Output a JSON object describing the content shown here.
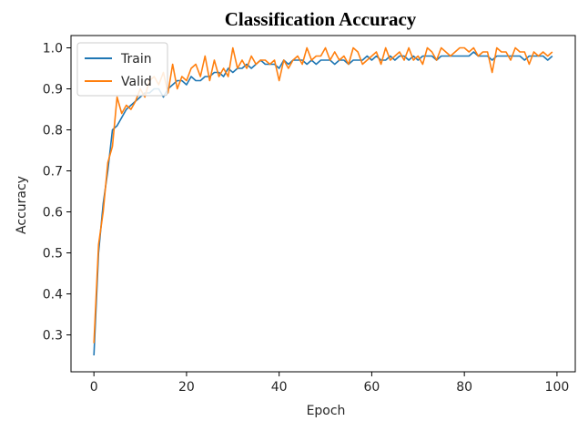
{
  "chart_data": {
    "type": "line",
    "title": "Classification Accuracy",
    "xlabel": "Epoch",
    "ylabel": "Accuracy",
    "xlim": [
      -4.95,
      103.95
    ],
    "ylim": [
      0.21,
      1.03
    ],
    "xticks": [
      0,
      20,
      40,
      60,
      80,
      100
    ],
    "yticks": [
      0.3,
      0.4,
      0.5,
      0.6,
      0.7,
      0.8,
      0.9,
      1.0
    ],
    "xtick_labels": [
      "0",
      "20",
      "40",
      "60",
      "80",
      "100"
    ],
    "ytick_labels": [
      "0.3",
      "0.4",
      "0.5",
      "0.6",
      "0.7",
      "0.8",
      "0.9",
      "1.0"
    ],
    "legend_position": "top-left",
    "grid": false,
    "x": [
      0,
      1,
      2,
      3,
      4,
      5,
      6,
      7,
      8,
      9,
      10,
      11,
      12,
      13,
      14,
      15,
      16,
      17,
      18,
      19,
      20,
      21,
      22,
      23,
      24,
      25,
      26,
      27,
      28,
      29,
      30,
      31,
      32,
      33,
      34,
      35,
      36,
      37,
      38,
      39,
      40,
      41,
      42,
      43,
      44,
      45,
      46,
      47,
      48,
      49,
      50,
      51,
      52,
      53,
      54,
      55,
      56,
      57,
      58,
      59,
      60,
      61,
      62,
      63,
      64,
      65,
      66,
      67,
      68,
      69,
      70,
      71,
      72,
      73,
      74,
      75,
      76,
      77,
      78,
      79,
      80,
      81,
      82,
      83,
      84,
      85,
      86,
      87,
      88,
      89,
      90,
      91,
      92,
      93,
      94,
      95,
      96,
      97,
      98,
      99
    ],
    "series": [
      {
        "name": "Train",
        "color": "#1f77b4",
        "values": [
          0.25,
          0.5,
          0.62,
          0.7,
          0.8,
          0.81,
          0.83,
          0.85,
          0.86,
          0.87,
          0.88,
          0.89,
          0.89,
          0.9,
          0.9,
          0.88,
          0.9,
          0.91,
          0.92,
          0.92,
          0.91,
          0.93,
          0.92,
          0.92,
          0.93,
          0.93,
          0.94,
          0.94,
          0.93,
          0.95,
          0.94,
          0.95,
          0.95,
          0.96,
          0.95,
          0.96,
          0.97,
          0.96,
          0.96,
          0.96,
          0.95,
          0.97,
          0.96,
          0.97,
          0.97,
          0.97,
          0.96,
          0.97,
          0.96,
          0.97,
          0.97,
          0.97,
          0.96,
          0.97,
          0.97,
          0.96,
          0.97,
          0.97,
          0.97,
          0.98,
          0.97,
          0.98,
          0.97,
          0.97,
          0.98,
          0.97,
          0.98,
          0.98,
          0.97,
          0.98,
          0.97,
          0.98,
          0.98,
          0.98,
          0.97,
          0.98,
          0.98,
          0.98,
          0.98,
          0.98,
          0.98,
          0.98,
          0.99,
          0.98,
          0.98,
          0.98,
          0.97,
          0.98,
          0.98,
          0.98,
          0.98,
          0.98,
          0.98,
          0.97,
          0.98,
          0.98,
          0.98,
          0.98,
          0.97,
          0.98
        ]
      },
      {
        "name": "Valid",
        "color": "#ff7f0e",
        "values": [
          0.28,
          0.52,
          0.6,
          0.72,
          0.76,
          0.88,
          0.84,
          0.86,
          0.85,
          0.87,
          0.9,
          0.88,
          0.92,
          0.93,
          0.91,
          0.94,
          0.89,
          0.96,
          0.9,
          0.93,
          0.92,
          0.95,
          0.96,
          0.93,
          0.98,
          0.92,
          0.97,
          0.93,
          0.95,
          0.93,
          1.0,
          0.95,
          0.97,
          0.95,
          0.98,
          0.96,
          0.97,
          0.97,
          0.96,
          0.97,
          0.92,
          0.97,
          0.95,
          0.97,
          0.98,
          0.96,
          1.0,
          0.97,
          0.98,
          0.98,
          1.0,
          0.97,
          0.99,
          0.97,
          0.98,
          0.96,
          1.0,
          0.99,
          0.96,
          0.97,
          0.98,
          0.99,
          0.96,
          1.0,
          0.97,
          0.98,
          0.99,
          0.97,
          1.0,
          0.97,
          0.98,
          0.96,
          1.0,
          0.99,
          0.97,
          1.0,
          0.99,
          0.98,
          0.99,
          1.0,
          1.0,
          0.99,
          1.0,
          0.98,
          0.99,
          0.99,
          0.94,
          1.0,
          0.99,
          0.99,
          0.97,
          1.0,
          0.99,
          0.99,
          0.96,
          0.99,
          0.98,
          0.99,
          0.98,
          0.99
        ]
      }
    ]
  }
}
